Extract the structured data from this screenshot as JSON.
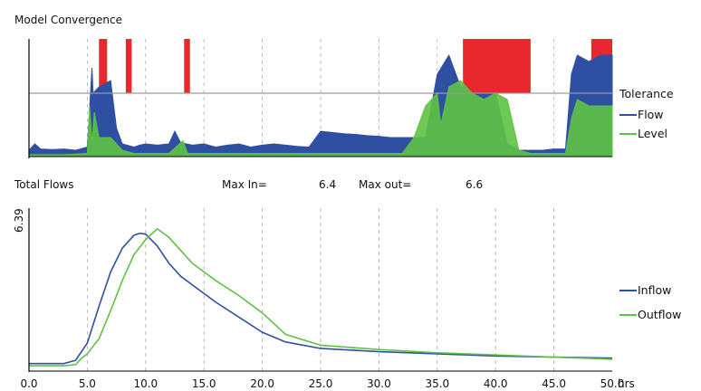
{
  "chart_data": [
    {
      "type": "area",
      "title": "Model Convergence",
      "legend": {
        "title": "Tolerance",
        "placement": "right",
        "entries": [
          {
            "name": "Flow",
            "color": "#2f4fa2"
          },
          {
            "name": "Level",
            "color": "#5ec244"
          }
        ]
      },
      "exceed_color": "#e8272e",
      "tolerance_line_color": "#9a9a9a",
      "xlim": [
        0,
        50
      ],
      "grid": true,
      "series": [
        {
          "name": "Flow",
          "color": "#2f4fa2",
          "x": [
            0,
            0.5,
            1,
            2,
            3,
            4,
            5,
            5.4,
            5.5,
            6,
            7,
            7.5,
            8,
            9,
            9.5,
            10,
            11,
            12,
            12.5,
            13,
            13.5,
            14,
            15,
            16,
            17,
            18,
            19,
            20,
            21,
            22,
            23,
            24,
            25,
            26,
            27,
            28,
            29,
            30,
            31,
            32,
            33,
            34,
            35,
            36,
            37,
            38,
            39,
            40,
            41,
            42,
            43,
            44,
            45,
            46,
            46.5,
            47,
            48,
            49,
            50
          ],
          "values": [
            0.1,
            0.2,
            0.12,
            0.11,
            0.12,
            0.1,
            0.15,
            1.4,
            1.0,
            1.1,
            1.2,
            0.45,
            0.2,
            0.15,
            0.18,
            0.2,
            0.18,
            0.2,
            0.4,
            0.22,
            0.2,
            0.18,
            0.2,
            0.15,
            0.18,
            0.2,
            0.15,
            0.18,
            0.2,
            0.18,
            0.16,
            0.15,
            0.4,
            0.38,
            0.36,
            0.35,
            0.33,
            0.32,
            0.3,
            0.3,
            0.3,
            0.3,
            1.3,
            1.6,
            1.1,
            1.0,
            1.0,
            1.0,
            0.2,
            0.1,
            0.1,
            0.1,
            0.12,
            0.12,
            1.3,
            1.6,
            1.5,
            1.6,
            1.6
          ]
        },
        {
          "name": "Level",
          "color": "#5ec244",
          "x": [
            0,
            1,
            2,
            3,
            4,
            5,
            5.2,
            5.4,
            5.6,
            6,
            7,
            8,
            9,
            10,
            12,
            13.2,
            13.6,
            14,
            16,
            18,
            20,
            22,
            24,
            26,
            28,
            30,
            32,
            33,
            34,
            35,
            35.3,
            36,
            37,
            38,
            39,
            40,
            41,
            42,
            43,
            44,
            45,
            46,
            46.5,
            47,
            48,
            49,
            50
          ],
          "values": [
            0.03,
            0.03,
            0.03,
            0.03,
            0.04,
            0.05,
            0.8,
            0.2,
            0.7,
            0.3,
            0.3,
            0.1,
            0.05,
            0.05,
            0.05,
            0.25,
            0.05,
            0.05,
            0.05,
            0.05,
            0.05,
            0.05,
            0.05,
            0.05,
            0.05,
            0.05,
            0.05,
            0.3,
            0.8,
            1.0,
            0.5,
            1.1,
            1.2,
            1.0,
            0.9,
            1.0,
            0.9,
            0.1,
            0.05,
            0.05,
            0.05,
            0.05,
            0.6,
            0.9,
            0.8,
            0.8,
            0.8
          ]
        }
      ],
      "exceedances": [
        {
          "from": 6.0,
          "to": 6.7,
          "height": 1.0
        },
        {
          "from": 8.3,
          "to": 8.8,
          "height": 1.0
        },
        {
          "from": 13.3,
          "to": 13.8,
          "height": 1.0
        },
        {
          "from": 37.2,
          "to": 43.0,
          "height": 1.0
        },
        {
          "from": 48.2,
          "to": 51.0,
          "height": 1.0
        }
      ]
    },
    {
      "type": "line",
      "title": "Total Flows",
      "max_in_label": "Max In=",
      "max_in_value": "6.4",
      "max_out_label": "Max out=",
      "max_out_value": "6.6",
      "ylabel": "6.39",
      "xunit": "hrs",
      "xlim": [
        0,
        50
      ],
      "ylim": [
        0,
        6.8
      ],
      "grid": true,
      "legend_placement": "right",
      "xticks": [
        "0.0",
        "5.0",
        "10.0",
        "15.0",
        "20.0",
        "25.0",
        "30.0",
        "35.0",
        "40.0",
        "45.0",
        "50.0"
      ],
      "series": [
        {
          "name": "Inflow",
          "color": "#2f4fa2",
          "x": [
            0,
            1,
            2,
            3,
            4,
            5,
            6,
            7,
            8,
            9,
            9.5,
            10,
            11,
            12,
            13,
            14,
            16,
            18,
            20,
            22,
            25,
            30,
            35,
            40,
            45,
            50
          ],
          "values": [
            0.35,
            0.35,
            0.35,
            0.35,
            0.5,
            1.3,
            3.0,
            4.6,
            5.7,
            6.3,
            6.39,
            6.35,
            5.8,
            5.0,
            4.4,
            4.0,
            3.2,
            2.5,
            1.8,
            1.35,
            1.05,
            0.9,
            0.8,
            0.7,
            0.65,
            0.6
          ]
        },
        {
          "name": "Outflow",
          "color": "#5ec244",
          "x": [
            0,
            1,
            2,
            3,
            4,
            4.5,
            5,
            6,
            7,
            8,
            9,
            10,
            11,
            12,
            13,
            14,
            15,
            16,
            18,
            20,
            22,
            25,
            30,
            35,
            40,
            45,
            50
          ],
          "values": [
            0.25,
            0.25,
            0.25,
            0.25,
            0.3,
            0.6,
            0.8,
            1.5,
            2.8,
            4.2,
            5.4,
            6.1,
            6.6,
            6.2,
            5.6,
            5.0,
            4.6,
            4.2,
            3.5,
            2.7,
            1.7,
            1.2,
            1.0,
            0.85,
            0.75,
            0.65,
            0.55
          ]
        }
      ]
    }
  ]
}
